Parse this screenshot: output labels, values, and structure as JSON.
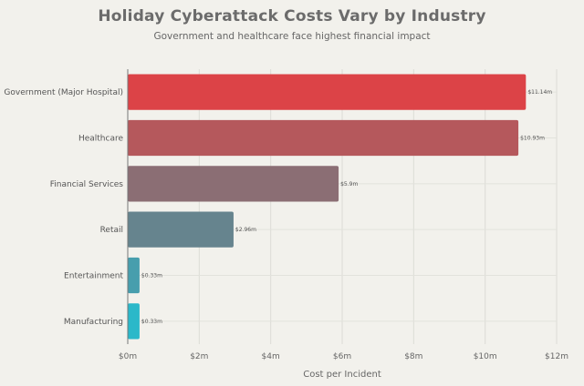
{
  "chart_data": {
    "type": "bar",
    "orientation": "horizontal",
    "title": "Holiday Cyberattack Costs Vary by Industry",
    "subtitle": "Government and healthcare face highest financial impact",
    "xlabel": "Cost per Incident",
    "ylabel": "",
    "xlim": [
      0,
      12
    ],
    "x_ticks": [
      0,
      2,
      4,
      6,
      8,
      10,
      12
    ],
    "x_tick_labels": [
      "$0m",
      "$2m",
      "$4m",
      "$6m",
      "$8m",
      "$10m",
      "$12m"
    ],
    "grid": true,
    "categories": [
      "Government (Major Hospital)",
      "Healthcare",
      "Financial Services",
      "Retail",
      "Entertainment",
      "Manufacturing"
    ],
    "values": [
      11.14,
      10.93,
      5.9,
      2.96,
      0.33,
      0.33
    ],
    "data_labels": [
      "$11.14m",
      "$10.93m",
      "$5.9m",
      "$2.96m",
      "$0.33m",
      "$0.33m"
    ],
    "colors": [
      "#dc4347",
      "#b5585c",
      "#8b6e74",
      "#66848e",
      "#479ead",
      "#2bb8c9"
    ]
  }
}
